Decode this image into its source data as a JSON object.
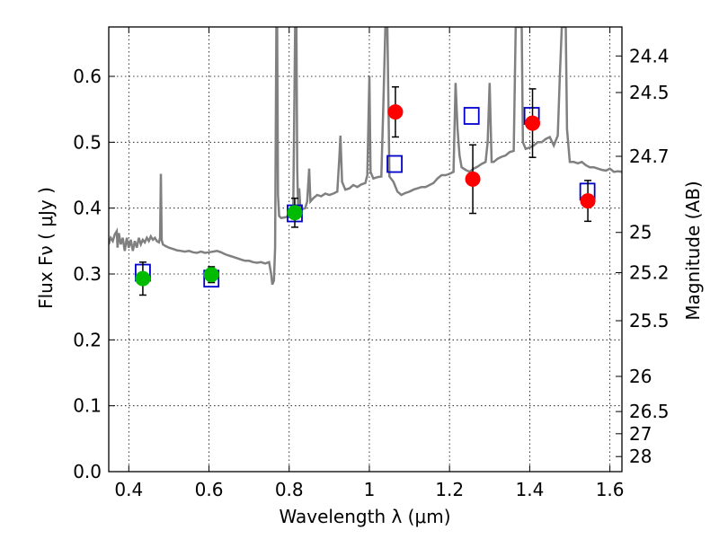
{
  "chart_data": {
    "type": "scatter",
    "xlabel": "Wavelength  λ (μm)",
    "ylabel": "Flux  Fν  ( μJy )",
    "y2label": "Magnitude (AB)",
    "xlim": [
      0.35,
      1.63
    ],
    "ylim": [
      0.0,
      0.675
    ],
    "grid": true,
    "x_ticks": [
      0.4,
      0.6,
      0.8,
      1.0,
      1.2,
      1.4,
      1.6
    ],
    "x_tick_labels": [
      "0.4",
      "0.6",
      "0.8",
      "1",
      "1.2",
      "1.4",
      "1.6"
    ],
    "y_ticks": [
      0.0,
      0.1,
      0.2,
      0.3,
      0.4,
      0.5,
      0.6
    ],
    "y_tick_labels": [
      "0.0",
      "0.1",
      "0.2",
      "0.3",
      "0.4",
      "0.5",
      "0.6"
    ],
    "mag_ticks": [
      {
        "mag": 24.4,
        "label": "24.4"
      },
      {
        "mag": 24.5,
        "label": "24.5"
      },
      {
        "mag": 24.7,
        "label": "24.7"
      },
      {
        "mag": 25.0,
        "label": "25"
      },
      {
        "mag": 25.2,
        "label": "25.2"
      },
      {
        "mag": 25.5,
        "label": "25.5"
      },
      {
        "mag": 26.0,
        "label": "26"
      },
      {
        "mag": 26.5,
        "label": "26.5"
      },
      {
        "mag": 27.0,
        "label": "27"
      },
      {
        "mag": 28.0,
        "label": "28"
      }
    ],
    "series": [
      {
        "kind": "model_spectrum",
        "color": "#808080",
        "points": [
          [
            0.35,
            0.345
          ],
          [
            0.355,
            0.355
          ],
          [
            0.36,
            0.35
          ],
          [
            0.365,
            0.36
          ],
          [
            0.37,
            0.365
          ],
          [
            0.372,
            0.34
          ],
          [
            0.375,
            0.362
          ],
          [
            0.38,
            0.345
          ],
          [
            0.385,
            0.355
          ],
          [
            0.39,
            0.335
          ],
          [
            0.395,
            0.355
          ],
          [
            0.4,
            0.34
          ],
          [
            0.405,
            0.352
          ],
          [
            0.41,
            0.335
          ],
          [
            0.415,
            0.35
          ],
          [
            0.42,
            0.34
          ],
          [
            0.425,
            0.355
          ],
          [
            0.43,
            0.345
          ],
          [
            0.435,
            0.352
          ],
          [
            0.44,
            0.348
          ],
          [
            0.445,
            0.355
          ],
          [
            0.45,
            0.35
          ],
          [
            0.455,
            0.357
          ],
          [
            0.46,
            0.352
          ],
          [
            0.465,
            0.355
          ],
          [
            0.47,
            0.35
          ],
          [
            0.475,
            0.348
          ],
          [
            0.478,
            0.355
          ],
          [
            0.48,
            0.452
          ],
          [
            0.482,
            0.352
          ],
          [
            0.485,
            0.345
          ],
          [
            0.49,
            0.343
          ],
          [
            0.5,
            0.34
          ],
          [
            0.51,
            0.338
          ],
          [
            0.52,
            0.336
          ],
          [
            0.53,
            0.335
          ],
          [
            0.54,
            0.334
          ],
          [
            0.55,
            0.335
          ],
          [
            0.56,
            0.333
          ],
          [
            0.57,
            0.332
          ],
          [
            0.58,
            0.334
          ],
          [
            0.59,
            0.332
          ],
          [
            0.6,
            0.333
          ],
          [
            0.61,
            0.334
          ],
          [
            0.62,
            0.335
          ],
          [
            0.63,
            0.333
          ],
          [
            0.64,
            0.33
          ],
          [
            0.65,
            0.328
          ],
          [
            0.66,
            0.326
          ],
          [
            0.67,
            0.324
          ],
          [
            0.68,
            0.322
          ],
          [
            0.69,
            0.32
          ],
          [
            0.7,
            0.32
          ],
          [
            0.71,
            0.318
          ],
          [
            0.72,
            0.317
          ],
          [
            0.73,
            0.318
          ],
          [
            0.74,
            0.316
          ],
          [
            0.75,
            0.318
          ],
          [
            0.755,
            0.3
          ],
          [
            0.758,
            0.284
          ],
          [
            0.762,
            0.29
          ],
          [
            0.765,
            0.34
          ],
          [
            0.768,
            0.675
          ],
          [
            0.77,
            0.675
          ],
          [
            0.772,
            0.42
          ],
          [
            0.775,
            0.388
          ],
          [
            0.78,
            0.385
          ],
          [
            0.79,
            0.386
          ],
          [
            0.8,
            0.388
          ],
          [
            0.81,
            0.39
          ],
          [
            0.815,
            0.675
          ],
          [
            0.818,
            0.675
          ],
          [
            0.82,
            0.46
          ],
          [
            0.822,
            0.405
          ],
          [
            0.825,
            0.43
          ],
          [
            0.828,
            0.4
          ],
          [
            0.832,
            0.398
          ],
          [
            0.84,
            0.4
          ],
          [
            0.845,
            0.41
          ],
          [
            0.85,
            0.46
          ],
          [
            0.853,
            0.41
          ],
          [
            0.86,
            0.415
          ],
          [
            0.87,
            0.42
          ],
          [
            0.88,
            0.418
          ],
          [
            0.89,
            0.422
          ],
          [
            0.9,
            0.42
          ],
          [
            0.91,
            0.422
          ],
          [
            0.92,
            0.425
          ],
          [
            0.925,
            0.475
          ],
          [
            0.928,
            0.51
          ],
          [
            0.932,
            0.44
          ],
          [
            0.94,
            0.428
          ],
          [
            0.95,
            0.43
          ],
          [
            0.96,
            0.435
          ],
          [
            0.97,
            0.432
          ],
          [
            0.98,
            0.436
          ],
          [
            0.99,
            0.438
          ],
          [
            0.995,
            0.45
          ],
          [
            1.0,
            0.6
          ],
          [
            1.003,
            0.455
          ],
          [
            1.01,
            0.445
          ],
          [
            1.02,
            0.447
          ],
          [
            1.03,
            0.448
          ],
          [
            1.035,
            0.56
          ],
          [
            1.04,
            0.675
          ],
          [
            1.045,
            0.675
          ],
          [
            1.048,
            0.54
          ],
          [
            1.05,
            0.448
          ],
          [
            1.06,
            0.44
          ],
          [
            1.07,
            0.425
          ],
          [
            1.08,
            0.42
          ],
          [
            1.09,
            0.423
          ],
          [
            1.1,
            0.425
          ],
          [
            1.11,
            0.428
          ],
          [
            1.12,
            0.43
          ],
          [
            1.13,
            0.432
          ],
          [
            1.14,
            0.432
          ],
          [
            1.15,
            0.435
          ],
          [
            1.16,
            0.438
          ],
          [
            1.17,
            0.445
          ],
          [
            1.18,
            0.45
          ],
          [
            1.19,
            0.45
          ],
          [
            1.2,
            0.452
          ],
          [
            1.21,
            0.455
          ],
          [
            1.215,
            0.59
          ],
          [
            1.22,
            0.52
          ],
          [
            1.225,
            0.48
          ],
          [
            1.23,
            0.462
          ],
          [
            1.24,
            0.458
          ],
          [
            1.25,
            0.455
          ],
          [
            1.26,
            0.46
          ],
          [
            1.27,
            0.463
          ],
          [
            1.28,
            0.467
          ],
          [
            1.29,
            0.47
          ],
          [
            1.295,
            0.5
          ],
          [
            1.3,
            0.59
          ],
          [
            1.305,
            0.47
          ],
          [
            1.31,
            0.47
          ],
          [
            1.32,
            0.475
          ],
          [
            1.33,
            0.478
          ],
          [
            1.34,
            0.48
          ],
          [
            1.35,
            0.485
          ],
          [
            1.36,
            0.487
          ],
          [
            1.365,
            0.675
          ],
          [
            1.37,
            0.675
          ],
          [
            1.375,
            0.675
          ],
          [
            1.38,
            0.675
          ],
          [
            1.383,
            0.5
          ],
          [
            1.39,
            0.49
          ],
          [
            1.4,
            0.492
          ],
          [
            1.41,
            0.495
          ],
          [
            1.42,
            0.5
          ],
          [
            1.43,
            0.5
          ],
          [
            1.44,
            0.505
          ],
          [
            1.45,
            0.508
          ],
          [
            1.46,
            0.495
          ],
          [
            1.47,
            0.51
          ],
          [
            1.475,
            0.6
          ],
          [
            1.48,
            0.675
          ],
          [
            1.485,
            0.675
          ],
          [
            1.49,
            0.675
          ],
          [
            1.493,
            0.52
          ],
          [
            1.5,
            0.47
          ],
          [
            1.51,
            0.47
          ],
          [
            1.52,
            0.468
          ],
          [
            1.53,
            0.47
          ],
          [
            1.54,
            0.465
          ],
          [
            1.55,
            0.462
          ],
          [
            1.56,
            0.462
          ],
          [
            1.57,
            0.46
          ],
          [
            1.58,
            0.458
          ],
          [
            1.59,
            0.457
          ],
          [
            1.6,
            0.46
          ],
          [
            1.61,
            0.455
          ],
          [
            1.62,
            0.456
          ],
          [
            1.63,
            0.455
          ]
        ]
      },
      {
        "kind": "model_band_flux",
        "marker": "open-square",
        "color": "#0000cc",
        "points": [
          {
            "x": 0.435,
            "y": 0.302
          },
          {
            "x": 0.606,
            "y": 0.293
          },
          {
            "x": 0.814,
            "y": 0.392
          },
          {
            "x": 1.063,
            "y": 0.467
          },
          {
            "x": 1.255,
            "y": 0.54
          },
          {
            "x": 1.405,
            "y": 0.54
          },
          {
            "x": 1.544,
            "y": 0.425
          }
        ]
      },
      {
        "kind": "observed_optical",
        "marker": "filled-circle",
        "color": "#00bb00",
        "points": [
          {
            "x": 0.435,
            "y": 0.293,
            "err": 0.025
          },
          {
            "x": 0.606,
            "y": 0.299,
            "err": 0.012
          },
          {
            "x": 0.814,
            "y": 0.393,
            "err": 0.022
          }
        ]
      },
      {
        "kind": "observed_nir",
        "marker": "filled-circle",
        "color": "#ff0000",
        "points": [
          {
            "x": 1.065,
            "y": 0.546,
            "err": 0.038
          },
          {
            "x": 1.258,
            "y": 0.444,
            "err": 0.052
          },
          {
            "x": 1.407,
            "y": 0.529,
            "err": 0.052
          },
          {
            "x": 1.545,
            "y": 0.411,
            "err": 0.031
          }
        ]
      }
    ]
  }
}
